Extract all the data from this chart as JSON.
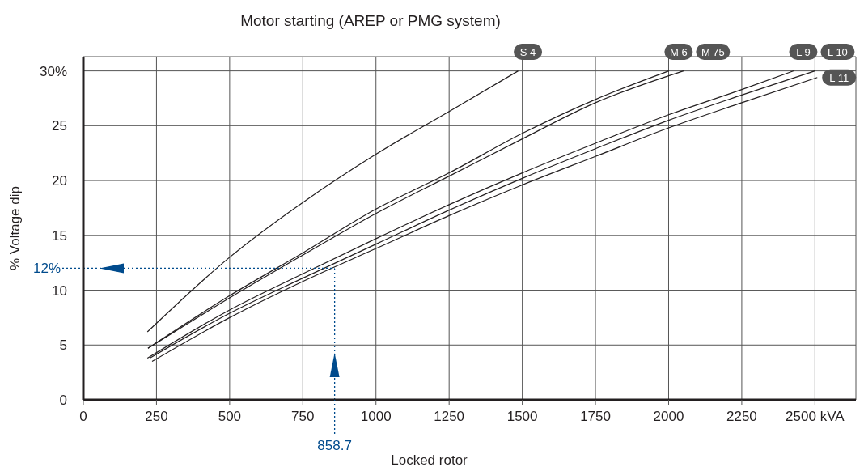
{
  "chart_data": {
    "type": "line",
    "title": "Motor starting (AREP or PMG system)",
    "xlabel": "Locked rotor",
    "ylabel": "% Voltage dip",
    "xlim": [
      0,
      2640
    ],
    "ylim": [
      0,
      31.3
    ],
    "xticks": [
      0,
      250,
      500,
      750,
      1000,
      1250,
      1500,
      1750,
      2000,
      2250,
      {
        "value": 2500,
        "label": "2500 kVA"
      }
    ],
    "yticks": [
      0,
      5,
      10,
      15,
      20,
      25,
      {
        "value": 30,
        "label": "30%"
      }
    ],
    "grid": true,
    "series": [
      {
        "name": "S 4",
        "color": "#231f20",
        "x": [
          219,
          500,
          750,
          1000,
          1250,
          1486
        ],
        "values": [
          6.2,
          13.0,
          18.0,
          22.4,
          26.3,
          30
        ]
      },
      {
        "name": "M 6",
        "color": "#231f20",
        "x": [
          221,
          500,
          750,
          1000,
          1250,
          1500,
          1750,
          2001
        ],
        "values": [
          4.7,
          9.5,
          13.4,
          17.4,
          20.7,
          24.3,
          27.4,
          30
        ]
      },
      {
        "name": "M 75",
        "color": "#231f20",
        "x": [
          221,
          500,
          750,
          1000,
          1250,
          1500,
          1750,
          2051
        ],
        "values": [
          4.7,
          9.3,
          13.2,
          17.0,
          20.4,
          23.8,
          27.1,
          30
        ]
      },
      {
        "name": "L 9",
        "color": "#231f20",
        "x": [
          219,
          500,
          750,
          1000,
          1250,
          1500,
          1750,
          2000,
          2250,
          2427
        ],
        "values": [
          3.8,
          8.2,
          11.5,
          14.7,
          17.8,
          20.7,
          23.4,
          26.0,
          28.3,
          30
        ]
      },
      {
        "name": "L 10",
        "color": "#231f20",
        "x": [
          227,
          500,
          750,
          1000,
          1250,
          1500,
          1750,
          2000,
          2250,
          2500
        ],
        "values": [
          3.8,
          7.9,
          11.1,
          14.2,
          17.3,
          20.2,
          22.9,
          25.5,
          27.8,
          30
        ]
      },
      {
        "name": "L 11",
        "color": "#231f20",
        "x": [
          235,
          500,
          750,
          1000,
          1250,
          1500,
          1750,
          2000,
          2250,
          2508
        ],
        "values": [
          3.5,
          7.5,
          10.8,
          13.8,
          16.8,
          19.6,
          22.2,
          24.8,
          27.1,
          29.4
        ]
      }
    ],
    "ref_lines": [
      {
        "axis": "y",
        "value": 12,
        "label": "12%",
        "color": "#004b8d",
        "line_style": "dotted"
      },
      {
        "axis": "x",
        "value": 858.7,
        "label": "858.7",
        "color": "#004b8d",
        "line_style": "dotted"
      }
    ]
  }
}
